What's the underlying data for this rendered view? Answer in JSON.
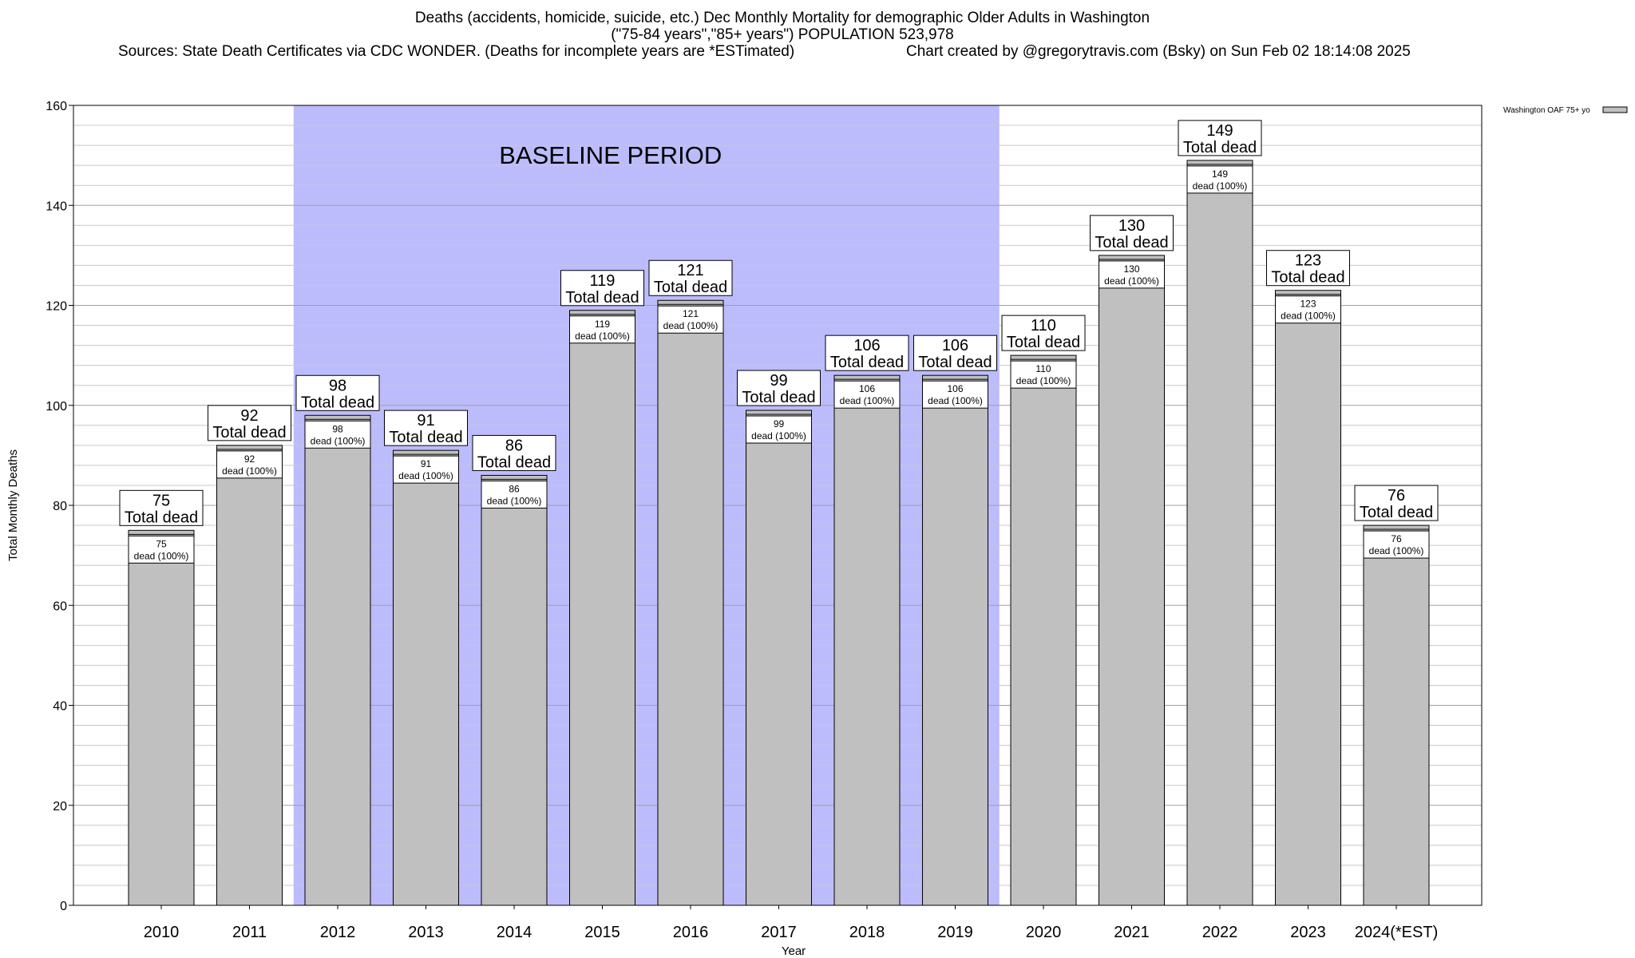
{
  "header": {
    "title_line1": "Deaths (accidents, homicide, suicide, etc.) Dec Monthly Mortality for demographic Older Adults in Washington",
    "title_line2": "(\"75-84 years\",\"85+ years\") POPULATION 523,978",
    "sources": "Sources: State Death Certificates via CDC WONDER. (Deaths for incomplete years are *ESTimated)",
    "credit": "Chart created by @gregorytravis.com (Bsky) on Sun Feb 02 18:14:08 2025"
  },
  "chart_data": {
    "type": "bar",
    "xlabel": "Year",
    "ylabel": "Total Monthly Deaths",
    "ylim": [
      0,
      160
    ],
    "yticks": [
      0,
      20,
      40,
      60,
      80,
      100,
      120,
      140,
      160
    ],
    "minor_grid_step": 4,
    "grid": true,
    "legend": {
      "label": "Washington OAF 75+ yo",
      "position": "top-right"
    },
    "baseline": {
      "label": "BASELINE PERIOD",
      "start": "2012",
      "end": "2019",
      "color": "#bcbcfc"
    },
    "bar_color": "#c0c0c0",
    "top_label_suffix": "Total dead",
    "inner_label_suffix": "dead (100%)",
    "categories": [
      "2010",
      "2011",
      "2012",
      "2013",
      "2014",
      "2015",
      "2016",
      "2017",
      "2018",
      "2019",
      "2020",
      "2021",
      "2022",
      "2023",
      "2024(*EST)"
    ],
    "series": [
      {
        "values": [
          75,
          92,
          98,
          91,
          86,
          119,
          121,
          99,
          106,
          106,
          110,
          130,
          149,
          123,
          76
        ]
      }
    ]
  }
}
